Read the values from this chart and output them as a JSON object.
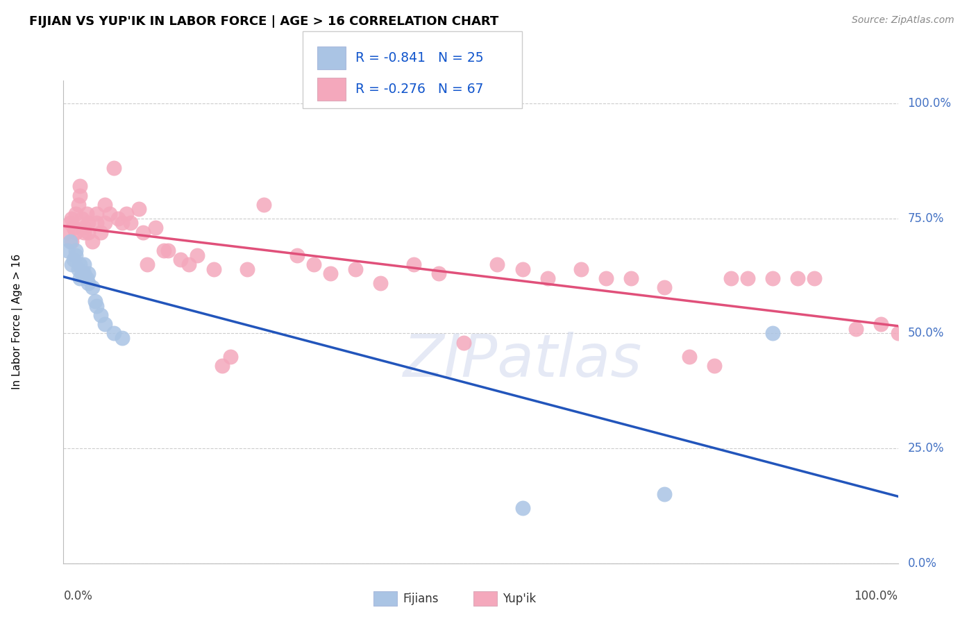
{
  "title": "FIJIAN VS YUP'IK IN LABOR FORCE | AGE > 16 CORRELATION CHART",
  "source": "Source: ZipAtlas.com",
  "ylabel": "In Labor Force | Age > 16",
  "ytick_labels": [
    "0.0%",
    "25.0%",
    "50.0%",
    "75.0%",
    "100.0%"
  ],
  "ytick_positions": [
    0,
    25,
    50,
    75,
    100
  ],
  "r_fijian": -0.841,
  "n_fijian": 25,
  "r_yupik": -0.276,
  "n_yupik": 67,
  "fijian_color": "#aac4e4",
  "yupik_color": "#f4a8bc",
  "fijian_line_color": "#2255bb",
  "yupik_line_color": "#e0507a",
  "watermark_text": "ZIPatlas",
  "fijian_x": [
    0.5,
    0.8,
    1.0,
    1.2,
    1.5,
    1.5,
    1.8,
    2.0,
    2.0,
    2.2,
    2.5,
    2.5,
    2.8,
    3.0,
    3.0,
    3.5,
    3.8,
    4.0,
    4.5,
    5.0,
    6.0,
    7.0,
    55.0,
    72.0,
    85.0
  ],
  "fijian_y": [
    68,
    70,
    65,
    66,
    67,
    68,
    64,
    62,
    65,
    63,
    63,
    65,
    62,
    61,
    63,
    60,
    57,
    56,
    54,
    52,
    50,
    49,
    12,
    15,
    50
  ],
  "yupik_x": [
    0.5,
    0.8,
    1.0,
    1.0,
    1.2,
    1.5,
    1.5,
    1.8,
    2.0,
    2.0,
    2.2,
    2.5,
    2.5,
    2.8,
    3.0,
    3.0,
    3.5,
    4.0,
    4.0,
    4.5,
    5.0,
    5.0,
    5.5,
    6.0,
    6.5,
    7.0,
    7.5,
    8.0,
    9.0,
    9.5,
    10.0,
    11.0,
    12.0,
    12.5,
    14.0,
    15.0,
    16.0,
    18.0,
    19.0,
    20.0,
    22.0,
    24.0,
    28.0,
    30.0,
    32.0,
    35.0,
    38.0,
    42.0,
    45.0,
    48.0,
    52.0,
    55.0,
    58.0,
    62.0,
    65.0,
    68.0,
    72.0,
    75.0,
    78.0,
    80.0,
    82.0,
    85.0,
    88.0,
    90.0,
    95.0,
    98.0,
    100.0
  ],
  "yupik_y": [
    72,
    74,
    70,
    75,
    73,
    72,
    76,
    78,
    80,
    82,
    75,
    73,
    72,
    76,
    74,
    72,
    70,
    74,
    76,
    72,
    78,
    74,
    76,
    86,
    75,
    74,
    76,
    74,
    77,
    72,
    65,
    73,
    68,
    68,
    66,
    65,
    67,
    64,
    43,
    45,
    64,
    78,
    67,
    65,
    63,
    64,
    61,
    65,
    63,
    48,
    65,
    64,
    62,
    64,
    62,
    62,
    60,
    45,
    43,
    62,
    62,
    62,
    62,
    62,
    51,
    52,
    50
  ]
}
